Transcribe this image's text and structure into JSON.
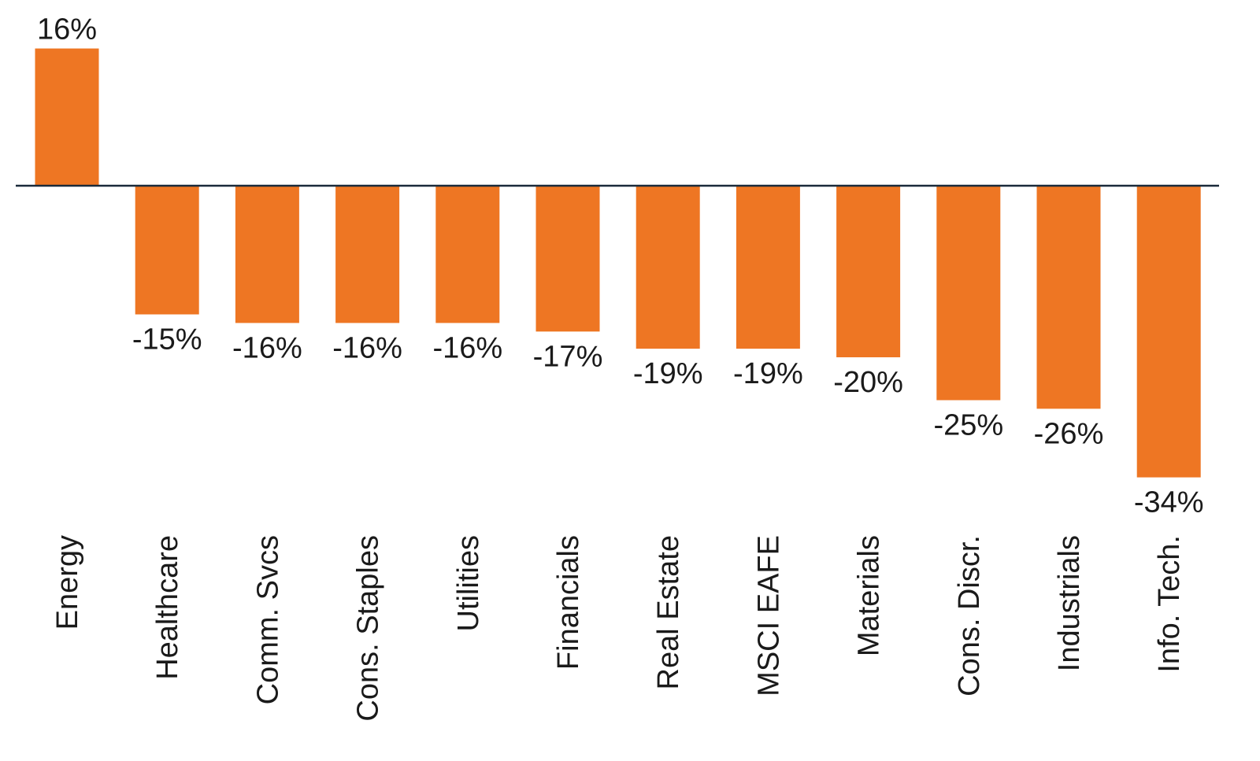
{
  "chart_data": {
    "type": "bar",
    "categories": [
      "Energy",
      "Healthcare",
      "Comm. Svcs",
      "Cons. Staples",
      "Utilities",
      "Financials",
      "Real Estate",
      "MSCI EAFE",
      "Materials",
      "Cons. Discr.",
      "Industrials",
      "Info. Tech."
    ],
    "values": [
      16,
      -15,
      -16,
      -16,
      -16,
      -17,
      -19,
      -19,
      -20,
      -25,
      -26,
      -34
    ],
    "value_labels": [
      "16%",
      "-15%",
      "-16%",
      "-16%",
      "-16%",
      "-17%",
      "-19%",
      "-19%",
      "-20%",
      "-25%",
      "-26%",
      "-34%"
    ],
    "title": "",
    "xlabel": "",
    "ylabel": "",
    "ylim": [
      -34,
      16
    ],
    "grid": false,
    "legend": "none",
    "bar_color": "#EE7623",
    "axis_color": "#1a2a3a"
  }
}
